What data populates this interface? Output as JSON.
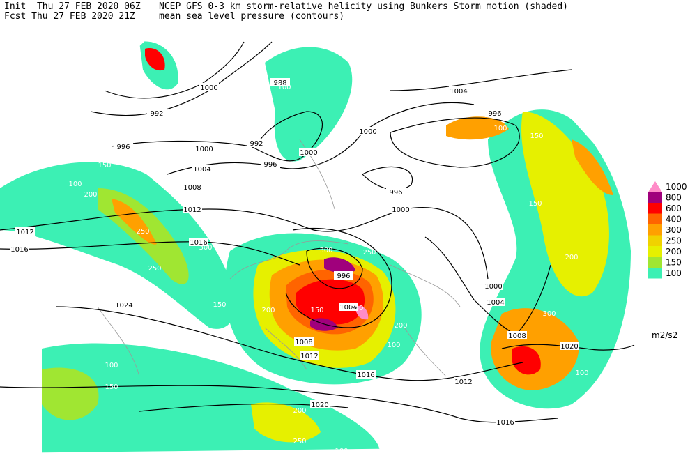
{
  "header": {
    "init": "Init  Thu 27 FEB 2020 06Z",
    "fcst": "Fcst Thu 27 FEB 2020 21Z",
    "title": "NCEP GFS 0-3 km storm-relative helicity using Bunkers Storm motion (shaded)",
    "subtitle": "mean sea level pressure (contours)"
  },
  "legend": {
    "levels": [
      1000,
      800,
      600,
      400,
      300,
      250,
      200,
      150,
      100
    ],
    "colors": [
      "#ff8cc8",
      "#a0007c",
      "#ff0000",
      "#ff6400",
      "#ffa000",
      "#f0d200",
      "#e6f000",
      "#a0e632",
      "#3cf0b4"
    ],
    "unit": "m2/s2"
  },
  "isobar_labels": [
    1000,
    992,
    996,
    988,
    992,
    996,
    1000,
    1000,
    996,
    1000,
    1004,
    996,
    1000,
    1004,
    1008,
    1012,
    1012,
    1016,
    1016,
    996,
    1004,
    1000,
    1004,
    1008,
    1020,
    1008,
    1012,
    1016,
    1012,
    1016,
    1020,
    1024
  ],
  "helicity_labels": [
    100,
    150,
    100,
    150,
    200,
    250,
    100,
    150,
    300,
    250,
    100,
    150,
    150,
    100,
    200,
    250,
    300,
    200,
    150,
    100,
    150,
    250,
    300,
    200,
    100,
    150,
    100,
    250,
    150,
    100,
    200,
    150,
    100,
    250,
    200,
    100
  ]
}
